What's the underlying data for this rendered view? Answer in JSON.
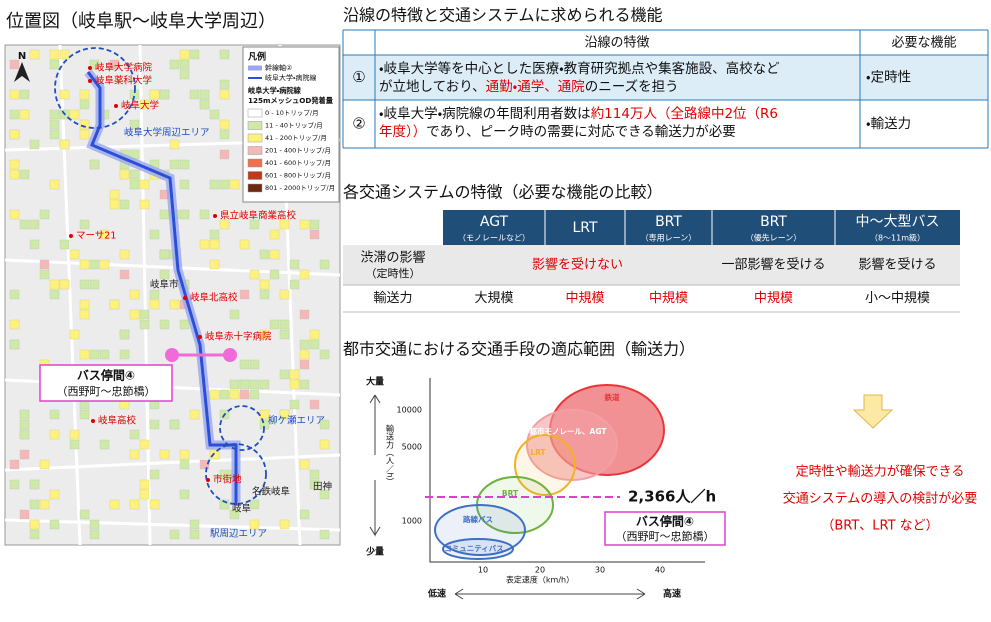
{
  "map": {
    "title": "位置図（岐阜駅～岐阜大学周辺）",
    "north": "N",
    "legend": {
      "title": "凡例",
      "line_items": [
        {
          "label": "幹線軸②",
          "color": "#9aa6f0"
        },
        {
          "label": "岐阜大学・病院線",
          "color": "#2b4fd6"
        }
      ],
      "od_title": [
        "岐阜大学・病院線",
        "125mメッシュOD発着量"
      ],
      "bins": [
        {
          "label": "0 - 10トリップ/月",
          "color": "#ffffff"
        },
        {
          "label": "11 - 40トリップ/月",
          "color": "#cfe9a8"
        },
        {
          "label": "41 - 200トリップ/月",
          "color": "#fff27a"
        },
        {
          "label": "201 - 400トリップ/月",
          "color": "#f4b8b8"
        },
        {
          "label": "401 - 600トリップ/月",
          "color": "#ee7050"
        },
        {
          "label": "601 - 800トリップ/月",
          "color": "#c0391b"
        },
        {
          "label": "801 - 2000トリップ/月",
          "color": "#6b2a0f"
        }
      ]
    },
    "places": [
      {
        "label": "岐阜大学病院",
        "kind": "facility"
      },
      {
        "label": "岐阜薬科大学",
        "kind": "facility"
      },
      {
        "label": "岐阜大学",
        "kind": "facility"
      },
      {
        "label": "岐阜大学周辺エリア",
        "kind": "area"
      },
      {
        "label": "マーサ21",
        "kind": "facility"
      },
      {
        "label": "県立岐阜商業高校",
        "kind": "facility"
      },
      {
        "label": "岐阜市",
        "kind": "city"
      },
      {
        "label": "岐阜北高校",
        "kind": "facility"
      },
      {
        "label": "岐阜赤十字病院",
        "kind": "facility"
      },
      {
        "label": "岐阜高校",
        "kind": "facility"
      },
      {
        "label": "柳ケ瀬エリア",
        "kind": "area"
      },
      {
        "label": "市街地",
        "kind": "facility"
      },
      {
        "label": "名鉄岐阜",
        "kind": "city"
      },
      {
        "label": "田神",
        "kind": "city"
      },
      {
        "label": "岐阜",
        "kind": "city"
      },
      {
        "label": "駅周辺エリア",
        "kind": "area"
      }
    ],
    "section": {
      "title": "バス停間④",
      "subtitle": "（西野町～忠節橋）"
    }
  },
  "features_table": {
    "title": "沿線の特徴と交通システムに求められる機能",
    "headers": [
      "沿線の特徴",
      "必要な機能"
    ],
    "rows": [
      {
        "number": "①",
        "lines": [
          [
            {
              "text": "・岐阜大学等を中心とした医療・教育研究拠点や集客施設、高校など"
            }
          ],
          [
            {
              "text": "が立地しており、"
            },
            {
              "text": "通勤・通学、通院",
              "color": "#e00000"
            },
            {
              "text": "のニーズを担う"
            }
          ]
        ],
        "function": "・定時性"
      },
      {
        "number": "②",
        "lines": [
          [
            {
              "text": "・岐阜大学・病院線の年間利用者数は"
            },
            {
              "text": "約114万人（全路線中2位（R6",
              "color": "#e00000"
            }
          ],
          [
            {
              "text": "年度））",
              "color": "#e00000"
            },
            {
              "text": "であり、ピーク時の需要に対応できる輸送力が必要"
            }
          ]
        ],
        "function": "・輸送力"
      }
    ]
  },
  "systems_table": {
    "title": "各交通システムの特徴（必要な機能の比較）",
    "columns": [
      {
        "name": "AGT",
        "note": "（モノレールなど）"
      },
      {
        "name": "LRT"
      },
      {
        "name": "BRT",
        "note": "（専用レーン）"
      },
      {
        "name": "BRT",
        "note": "（優先レーン）"
      },
      {
        "name": "中～大型バス",
        "note": "（8～11m級）"
      }
    ],
    "rows": [
      {
        "label": "渋滞の影響",
        "note": "（定時性）",
        "cells": [
          {
            "text": "影響を受けない",
            "span": 3,
            "color": "#e00000"
          },
          {
            "text": "一部影響を受ける"
          },
          {
            "text": "影響を受ける"
          }
        ]
      },
      {
        "label": "輸送力",
        "cells": [
          {
            "text": "大規模"
          },
          {
            "text": "中規模",
            "color": "#e00000"
          },
          {
            "text": "中規模",
            "color": "#e00000"
          },
          {
            "text": "中規模",
            "color": "#e00000"
          },
          {
            "text": "小～中規模"
          }
        ]
      }
    ]
  },
  "capacity_chart": {
    "title": "都市交通における交通手段の適応範囲（輸送力）",
    "y_label": "輸送力（人／h）",
    "y_high": "大量",
    "y_low": "少量",
    "yticks": [
      10000,
      5000,
      1000
    ],
    "xticks": [
      10,
      20,
      30,
      40
    ],
    "x_label": "表定速度（km/h）",
    "x_low": "低速",
    "x_high": "高速",
    "modes": [
      {
        "label": "鉄道",
        "color": "#e8373b"
      },
      {
        "label": "都市モノレール、AGT",
        "color": "#f2a0a4"
      },
      {
        "label": "LRT",
        "color": "#f2b21f"
      },
      {
        "label": "BRT",
        "color": "#6db33f"
      },
      {
        "label": "路線バス",
        "color": "#3d6fc4"
      },
      {
        "label": "コミュニティバス",
        "color": "#3d6fc4"
      }
    ],
    "threshold": {
      "label": "2,366人／h"
    },
    "section": {
      "title": "バス停間④",
      "subtitle": "（西野町～忠節橋）"
    }
  },
  "conclusion": {
    "lines": [
      "定時性や輸送力が確保できる",
      "交通システムの導入の検討が必要",
      "（BRT、LRT など）"
    ]
  }
}
